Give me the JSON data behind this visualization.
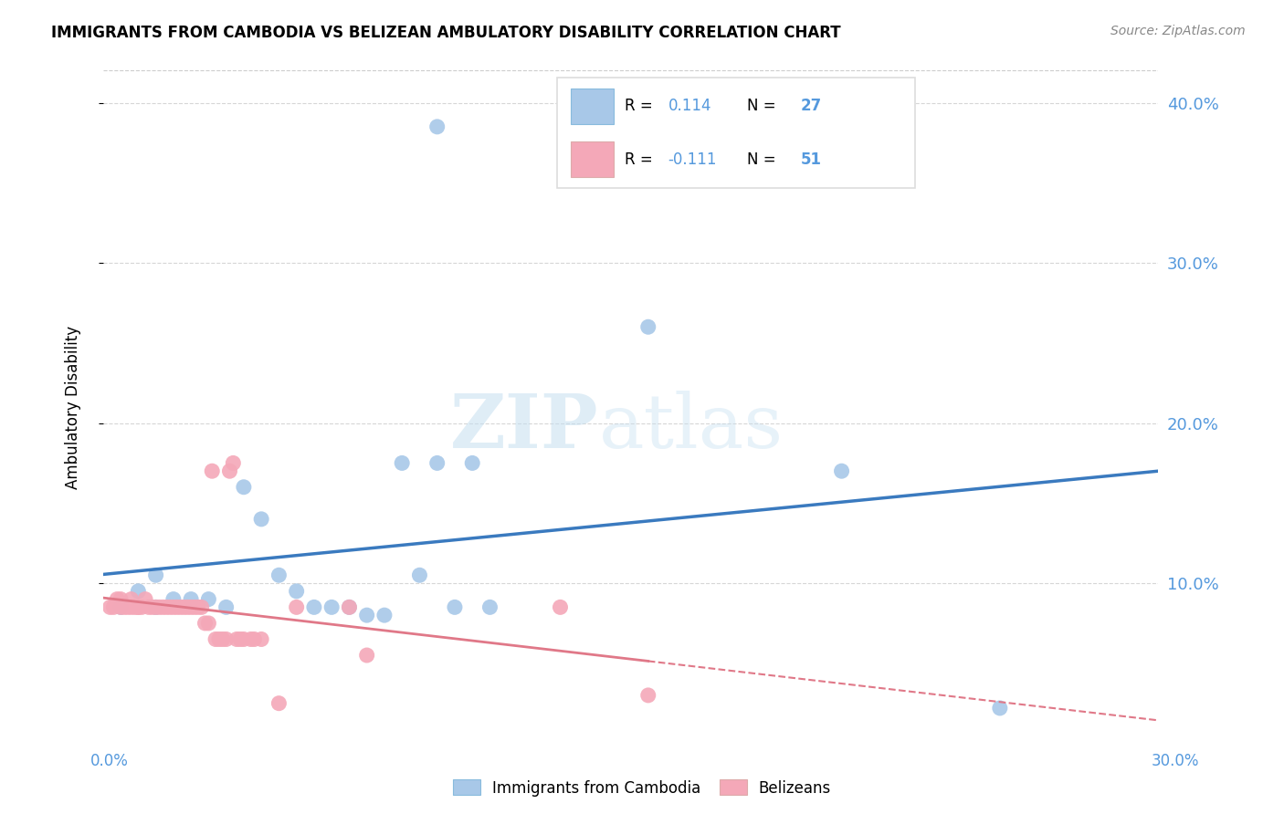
{
  "title": "IMMIGRANTS FROM CAMBODIA VS BELIZEAN AMBULATORY DISABILITY CORRELATION CHART",
  "source": "Source: ZipAtlas.com",
  "ylabel": "Ambulatory Disability",
  "legend_label1": "Immigrants from Cambodia",
  "legend_label2": "Belizeans",
  "r1": 0.114,
  "n1": 27,
  "r2": -0.111,
  "n2": 51,
  "blue_color": "#a8c8e8",
  "pink_color": "#f4a8b8",
  "blue_line_color": "#3a7abf",
  "pink_line_color": "#e07888",
  "axis_label_color": "#5599dd",
  "xlim": [
    0.0,
    0.3
  ],
  "ylim": [
    0.0,
    0.42
  ],
  "yticks": [
    0.1,
    0.2,
    0.3,
    0.4
  ],
  "blue_scatter_x": [
    0.095,
    0.005,
    0.01,
    0.015,
    0.015,
    0.02,
    0.025,
    0.03,
    0.035,
    0.04,
    0.045,
    0.05,
    0.055,
    0.06,
    0.065,
    0.07,
    0.075,
    0.08,
    0.085,
    0.09,
    0.095,
    0.1,
    0.105,
    0.11,
    0.155,
    0.21,
    0.255
  ],
  "blue_scatter_y": [
    0.385,
    0.085,
    0.095,
    0.105,
    0.085,
    0.09,
    0.09,
    0.09,
    0.085,
    0.16,
    0.14,
    0.105,
    0.095,
    0.085,
    0.085,
    0.085,
    0.08,
    0.08,
    0.175,
    0.105,
    0.175,
    0.085,
    0.175,
    0.085,
    0.26,
    0.17,
    0.022
  ],
  "pink_scatter_x": [
    0.002,
    0.003,
    0.004,
    0.005,
    0.005,
    0.006,
    0.007,
    0.008,
    0.008,
    0.009,
    0.01,
    0.01,
    0.011,
    0.012,
    0.013,
    0.014,
    0.015,
    0.016,
    0.017,
    0.018,
    0.019,
    0.02,
    0.021,
    0.022,
    0.023,
    0.024,
    0.025,
    0.026,
    0.027,
    0.028,
    0.029,
    0.03,
    0.031,
    0.032,
    0.033,
    0.034,
    0.035,
    0.036,
    0.037,
    0.038,
    0.039,
    0.04,
    0.042,
    0.043,
    0.045,
    0.05,
    0.055,
    0.07,
    0.075,
    0.13,
    0.155
  ],
  "pink_scatter_y": [
    0.085,
    0.085,
    0.09,
    0.085,
    0.09,
    0.085,
    0.085,
    0.085,
    0.09,
    0.085,
    0.085,
    0.085,
    0.085,
    0.09,
    0.085,
    0.085,
    0.085,
    0.085,
    0.085,
    0.085,
    0.085,
    0.085,
    0.085,
    0.085,
    0.085,
    0.085,
    0.085,
    0.085,
    0.085,
    0.085,
    0.075,
    0.075,
    0.17,
    0.065,
    0.065,
    0.065,
    0.065,
    0.17,
    0.175,
    0.065,
    0.065,
    0.065,
    0.065,
    0.065,
    0.065,
    0.025,
    0.085,
    0.085,
    0.055,
    0.085,
    0.03
  ]
}
